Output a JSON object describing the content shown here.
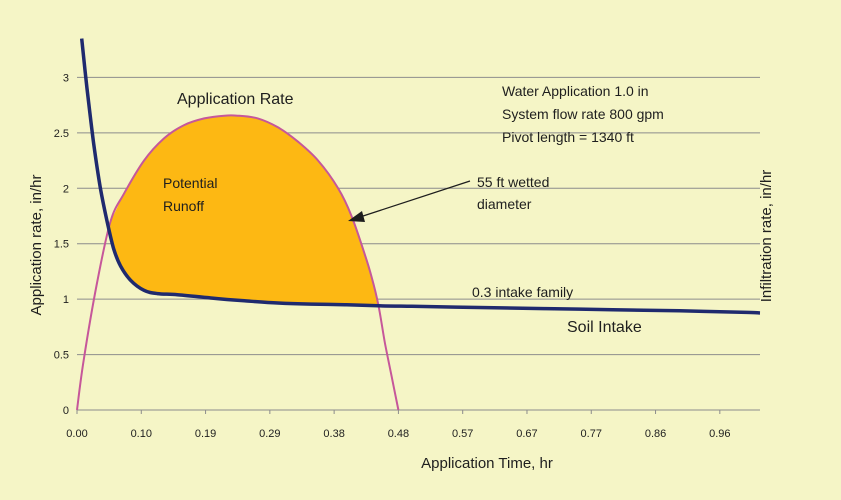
{
  "chart_data": {
    "type": "line",
    "title": "",
    "xlabel": "Application Time, hr",
    "ylabel": "Application rate, in/hr",
    "y2label": "Infiltration rate, in/hr",
    "xlim": [
      0,
      1.02
    ],
    "ylim": [
      0,
      3.5
    ],
    "x_ticks": [
      "0.00",
      "0.10",
      "0.19",
      "0.29",
      "0.38",
      "0.48",
      "0.57",
      "0.67",
      "0.77",
      "0.86",
      "0.96"
    ],
    "y_ticks": [
      "0",
      "0.5",
      "1",
      "1.5",
      "2",
      "2.5",
      "3"
    ],
    "grid": "horizontal",
    "series": [
      {
        "name": "Application Rate",
        "color": "#c6579a",
        "x": [
          0,
          0.01,
          0.03,
          0.05,
          0.07,
          0.1,
          0.13,
          0.16,
          0.19,
          0.22,
          0.24,
          0.27,
          0.3,
          0.33,
          0.36,
          0.39,
          0.41,
          0.43,
          0.44,
          0.45,
          0.46,
          0.47,
          0.48
        ],
        "values": [
          0,
          0.45,
          1.15,
          1.7,
          1.95,
          2.25,
          2.45,
          2.57,
          2.63,
          2.655,
          2.655,
          2.63,
          2.55,
          2.42,
          2.25,
          2.0,
          1.75,
          1.4,
          1.2,
          0.95,
          0.6,
          0.3,
          0
        ]
      },
      {
        "name": "Soil Intake",
        "color": "#1f2a6e",
        "x": [
          0.007,
          0.015,
          0.025,
          0.035,
          0.045,
          0.055,
          0.065,
          0.08,
          0.1,
          0.12,
          0.15,
          0.2,
          0.25,
          0.3,
          0.35,
          0.4,
          0.45,
          0.5,
          0.6,
          0.7,
          0.8,
          0.9,
          1.0,
          1.02
        ],
        "values": [
          3.35,
          2.9,
          2.4,
          2.0,
          1.7,
          1.45,
          1.3,
          1.17,
          1.08,
          1.05,
          1.04,
          1.01,
          0.985,
          0.965,
          0.955,
          0.95,
          0.94,
          0.935,
          0.925,
          0.915,
          0.905,
          0.895,
          0.88,
          0.875
        ]
      }
    ],
    "shaded_region": {
      "name": "Potential Runoff",
      "color": "#fdb813"
    },
    "annotations": {
      "application_rate": "Application Rate",
      "potential": "Potential",
      "runoff": "Runoff",
      "water_app": "Water Application 1.0 in",
      "flow_rate": "System flow rate 800 gpm",
      "pivot_length": "Pivot length = 1340 ft",
      "wetted_1": "55 ft wetted",
      "wetted_2": "diameter",
      "intake_family": "0.3 intake family",
      "soil_intake": "Soil Intake"
    }
  },
  "colors": {
    "background": "#f5f5c6",
    "grid": "#8c8c8c",
    "runoff_fill": "#fdb813"
  }
}
